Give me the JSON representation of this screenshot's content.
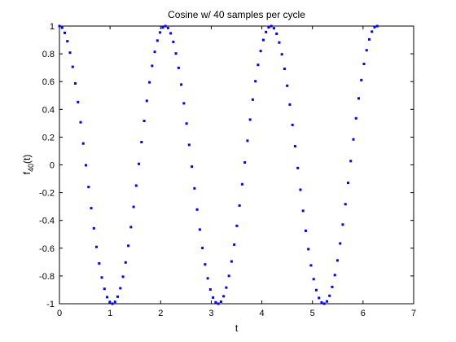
{
  "chart_data": {
    "type": "scatter",
    "title": "Cosine w/ 40 samples per cycle",
    "xlabel": "t",
    "ylabel_base": "f",
    "ylabel_sub": "40",
    "ylabel_suffix": "(t)",
    "xlim": [
      0,
      7
    ],
    "ylim": [
      -1,
      1
    ],
    "x_ticks": [
      0,
      1,
      2,
      3,
      4,
      5,
      6,
      7
    ],
    "x_tick_labels": [
      "0",
      "1",
      "2",
      "3",
      "4",
      "5",
      "6",
      "7"
    ],
    "y_ticks": [
      -1,
      -0.8,
      -0.6,
      -0.4,
      -0.2,
      0,
      0.2,
      0.4,
      0.6,
      0.8,
      1
    ],
    "y_tick_labels": [
      "-1",
      "-0.8",
      "-0.6",
      "-0.4",
      "-0.2",
      "0",
      "0.2",
      "0.4",
      "0.6",
      "0.8",
      "1"
    ],
    "grid": false,
    "marker_color": "#0000ff",
    "series": [
      {
        "function": "cos(2*pi*t/2.09)",
        "t_start": 0,
        "t_end": 6.28,
        "sample_count": 121
      }
    ]
  }
}
